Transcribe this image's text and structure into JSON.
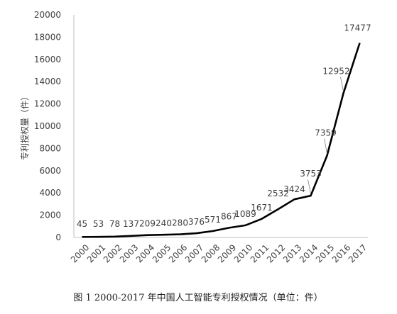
{
  "chart_data": {
    "type": "line",
    "x": [
      "2000",
      "2001",
      "2002",
      "2003",
      "2004",
      "2005",
      "2006",
      "2007",
      "2008",
      "2009",
      "2010",
      "2011",
      "2012",
      "2013",
      "2014",
      "2015",
      "2016",
      "2017"
    ],
    "series": [
      {
        "values": [
          45,
          53,
          78,
          137,
          209,
          240,
          280,
          376,
          571,
          867,
          1089,
          1671,
          2532,
          3424,
          3753,
          7359,
          12952,
          17477
        ]
      }
    ],
    "data_labels": [
      "45",
      "53",
      "78",
      "137",
      "209",
      "240",
      "280",
      "376",
      "571",
      "867",
      "1089",
      "1671",
      "2532",
      "3424",
      "3753",
      "7359",
      "12952",
      "17477"
    ],
    "title": "",
    "xlabel": "",
    "ylabel": "专利授权量（件）",
    "ylim": [
      0,
      20000
    ],
    "yticks": [
      0,
      2000,
      4000,
      6000,
      8000,
      10000,
      12000,
      14000,
      16000,
      18000,
      20000
    ],
    "grid": false,
    "legend": "none",
    "colors": {
      "line": "#000000",
      "axis": "#bfbfbf",
      "text": "#404040"
    }
  },
  "caption": "图 1   2000-2017 年中国人工智能专利授权情况（单位：件）"
}
